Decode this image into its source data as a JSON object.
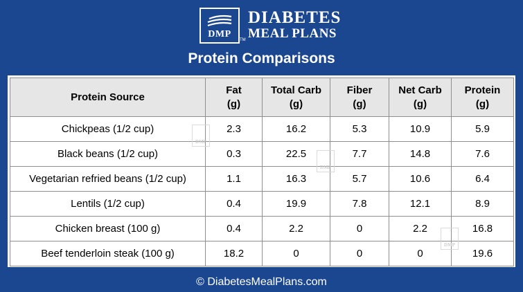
{
  "brand": {
    "logo_line1": "DIABETES",
    "logo_line2": "MEAL PLANS",
    "logo_mark": "DMP",
    "tm": "TM",
    "icon": "wave-lines-icon"
  },
  "title": "Protein Comparisons",
  "table": {
    "headers": [
      {
        "line1": "Protein Source",
        "line2": ""
      },
      {
        "line1": "Fat",
        "line2": "(g)"
      },
      {
        "line1": "Total Carb",
        "line2": "(g)"
      },
      {
        "line1": "Fiber",
        "line2": "(g)"
      },
      {
        "line1": "Net Carb",
        "line2": "(g)"
      },
      {
        "line1": "Protein",
        "line2": "(g)"
      }
    ],
    "rows": [
      [
        "Chickpeas (1/2 cup)",
        "2.3",
        "16.2",
        "5.3",
        "10.9",
        "5.9"
      ],
      [
        "Black beans (1/2 cup)",
        "0.3",
        "22.5",
        "7.7",
        "14.8",
        "7.6"
      ],
      [
        "Vegetarian refried beans (1/2 cup)",
        "1.1",
        "16.3",
        "5.7",
        "10.6",
        "6.4"
      ],
      [
        "Lentils (1/2 cup)",
        "0.4",
        "19.9",
        "7.8",
        "12.1",
        "8.9"
      ],
      [
        "Chicken breast (100 g)",
        "0.4",
        "2.2",
        "0",
        "2.2",
        "16.8"
      ],
      [
        "Beef tenderloin steak (100 g)",
        "18.2",
        "0",
        "0",
        "0",
        "19.6"
      ]
    ]
  },
  "watermark": "DMP",
  "footer": "© DiabetesMealPlans.com",
  "colors": {
    "background": "#1b4690",
    "header_fill": "#e6e6e6",
    "border": "#8e8e8e"
  }
}
